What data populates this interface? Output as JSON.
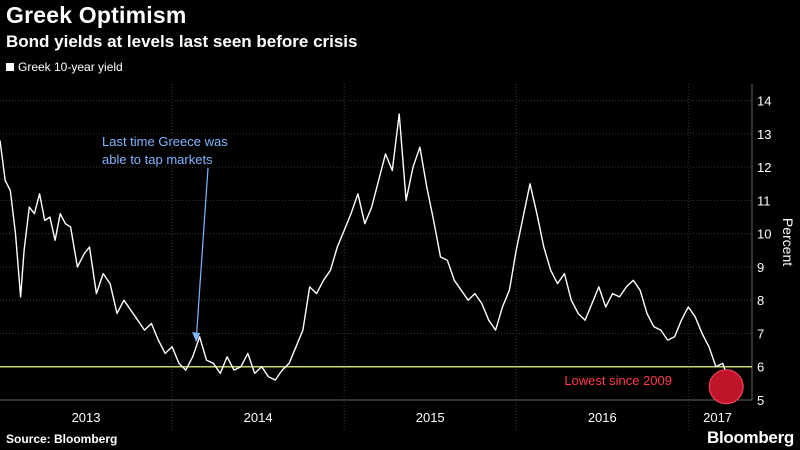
{
  "header": {
    "title": "Greek Optimism",
    "subtitle": "Bond yields at levels last seen before crisis"
  },
  "footer": {
    "source": "Source: Bloomberg",
    "brand": "Bloomberg"
  },
  "colors": {
    "background": "#000000",
    "series": "#ffffff",
    "reference_line": "#c8d46a",
    "annotation_blue": "#7fb5ff",
    "annotation_red": "#ff3a4a",
    "highlight_circle": "#c0142a"
  },
  "chart_data": {
    "type": "line",
    "title": "Greek Optimism",
    "subtitle": "Bond yields at levels last seen before crisis",
    "xlabel": "",
    "ylabel": "Percent",
    "ylim": [
      5,
      14.5
    ],
    "yticks": [
      5,
      6,
      7,
      8,
      9,
      10,
      11,
      12,
      13,
      14
    ],
    "xlim": [
      2013.0,
      2017.37
    ],
    "xticks": [
      {
        "label": "2013",
        "at": 2013.5
      },
      {
        "label": "2014",
        "at": 2014.5
      },
      {
        "label": "2015",
        "at": 2015.5
      },
      {
        "label": "2016",
        "at": 2016.5
      },
      {
        "label": "2017",
        "at": 2017.17
      }
    ],
    "grid": true,
    "legend": "top-left",
    "reference_line": {
      "y": 6
    },
    "series": [
      {
        "name": "Greek 10-year yield",
        "x": [
          2013.0,
          2013.03,
          2013.06,
          2013.09,
          2013.12,
          2013.14,
          2013.17,
          2013.2,
          2013.23,
          2013.26,
          2013.29,
          2013.32,
          2013.35,
          2013.38,
          2013.41,
          2013.45,
          2013.49,
          2013.52,
          2013.56,
          2013.6,
          2013.64,
          2013.68,
          2013.72,
          2013.76,
          2013.8,
          2013.84,
          2013.88,
          2013.92,
          2013.96,
          2014.0,
          2014.04,
          2014.08,
          2014.12,
          2014.16,
          2014.2,
          2014.24,
          2014.28,
          2014.32,
          2014.36,
          2014.4,
          2014.44,
          2014.48,
          2014.52,
          2014.56,
          2014.6,
          2014.64,
          2014.68,
          2014.72,
          2014.76,
          2014.8,
          2014.84,
          2014.88,
          2014.92,
          2014.96,
          2015.0,
          2015.04,
          2015.08,
          2015.12,
          2015.16,
          2015.2,
          2015.24,
          2015.28,
          2015.32,
          2015.36,
          2015.4,
          2015.44,
          2015.48,
          2015.52,
          2015.56,
          2015.6,
          2015.64,
          2015.68,
          2015.72,
          2015.76,
          2015.8,
          2015.84,
          2015.88,
          2015.92,
          2015.96,
          2016.0,
          2016.04,
          2016.08,
          2016.12,
          2016.16,
          2016.2,
          2016.24,
          2016.28,
          2016.32,
          2016.36,
          2016.4,
          2016.44,
          2016.48,
          2016.52,
          2016.56,
          2016.6,
          2016.64,
          2016.68,
          2016.72,
          2016.76,
          2016.8,
          2016.84,
          2016.88,
          2016.92,
          2016.96,
          2017.0,
          2017.04,
          2017.08,
          2017.12,
          2017.16,
          2017.2,
          2017.24
        ],
        "values": [
          12.8,
          11.6,
          11.3,
          10.0,
          8.1,
          9.5,
          10.8,
          10.6,
          11.2,
          10.4,
          10.5,
          9.8,
          10.6,
          10.3,
          10.2,
          9.0,
          9.4,
          9.6,
          8.2,
          8.8,
          8.5,
          7.6,
          8.0,
          7.7,
          7.4,
          7.1,
          7.3,
          6.8,
          6.4,
          6.6,
          6.1,
          5.9,
          6.3,
          6.9,
          6.2,
          6.1,
          5.8,
          6.3,
          5.9,
          6.0,
          6.4,
          5.8,
          6.0,
          5.7,
          5.6,
          5.9,
          6.1,
          6.6,
          7.1,
          8.4,
          8.2,
          8.6,
          8.9,
          9.6,
          10.1,
          10.6,
          11.2,
          10.3,
          10.8,
          11.6,
          12.4,
          11.9,
          13.6,
          11.0,
          12.0,
          12.6,
          11.4,
          10.4,
          9.3,
          9.2,
          8.6,
          8.3,
          8.0,
          8.2,
          7.9,
          7.4,
          7.1,
          7.8,
          8.3,
          9.5,
          10.5,
          11.5,
          10.6,
          9.6,
          8.9,
          8.5,
          8.8,
          8.0,
          7.6,
          7.4,
          7.9,
          8.4,
          7.8,
          8.2,
          8.1,
          8.4,
          8.6,
          8.3,
          7.6,
          7.2,
          7.1,
          6.8,
          6.9,
          7.4,
          7.8,
          7.5,
          7.0,
          6.6,
          6.0,
          6.1,
          5.5
        ]
      }
    ],
    "annotations": [
      {
        "text_lines": [
          "Last time Greece was",
          "able to tap markets"
        ],
        "x": 2014.14,
        "y": 6.8
      },
      {
        "text": "Lowest since 2009",
        "x": 2017.22,
        "y": 5.5
      }
    ]
  }
}
